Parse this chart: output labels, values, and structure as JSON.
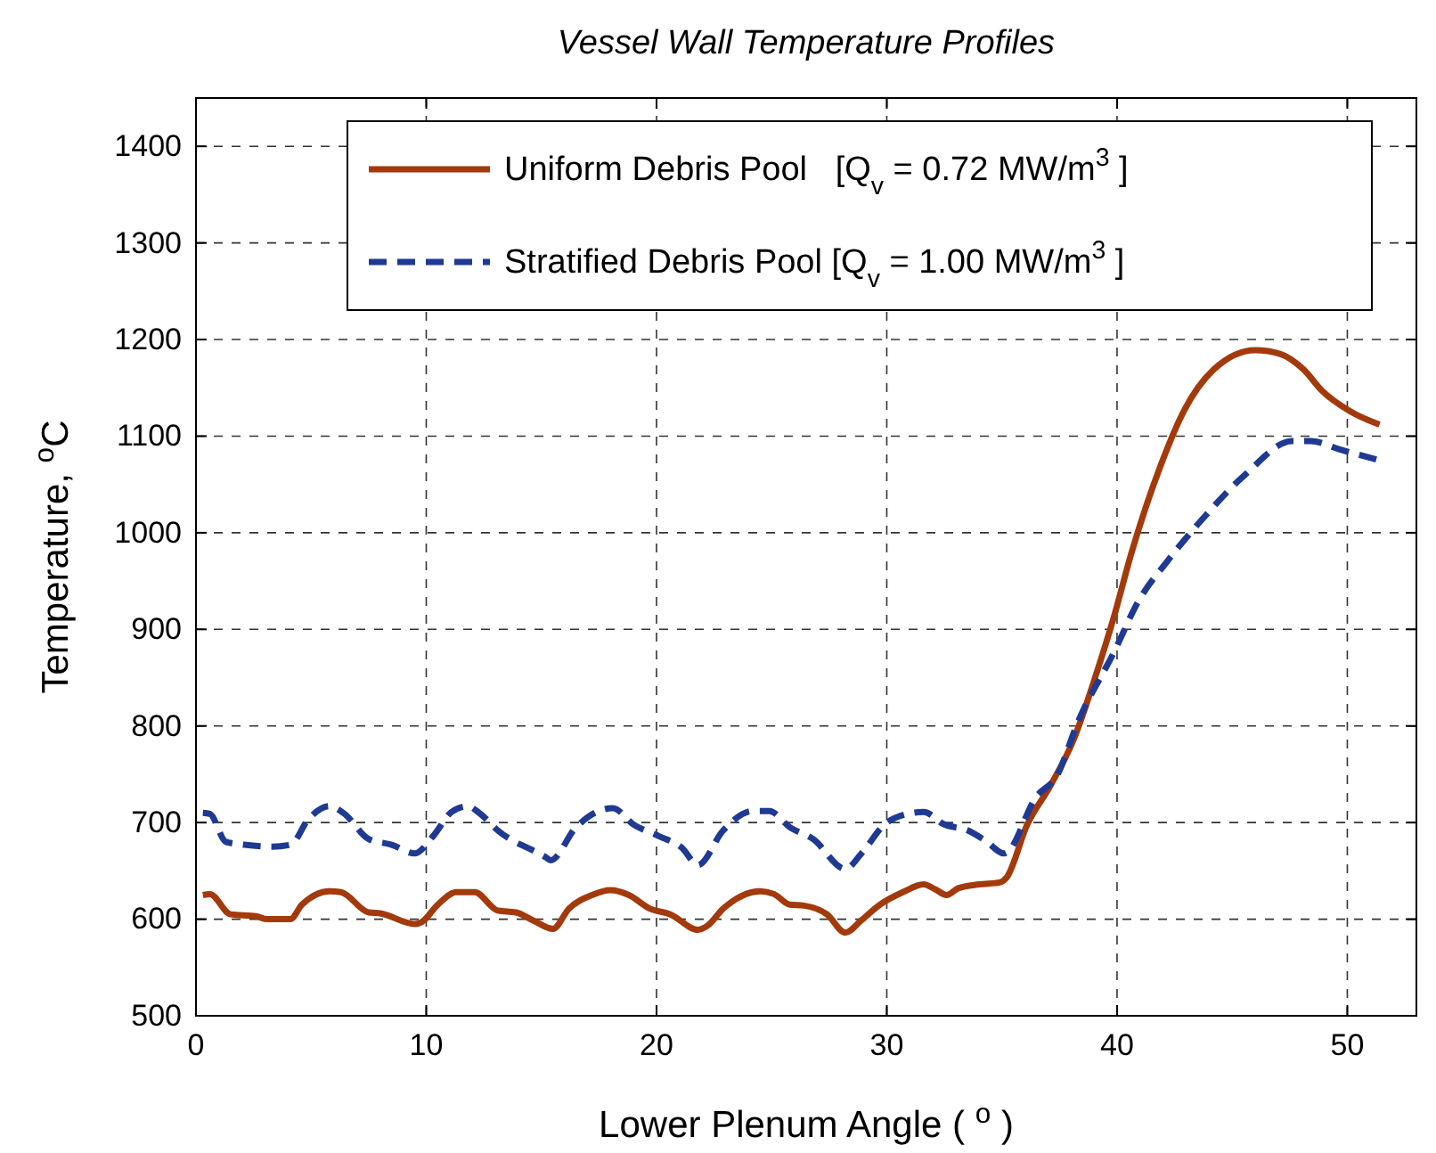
{
  "chart_data": {
    "type": "line",
    "title": "Vessel Wall Temperature Profiles",
    "xlabel": "Lower Plenum Angle ( $^{o}$ )",
    "ylabel": "Temperature, $^{o}$C",
    "xlim": [
      0,
      53
    ],
    "ylim": [
      500,
      1450
    ],
    "xticks": [
      0,
      10,
      20,
      30,
      40,
      50
    ],
    "yticks": [
      500,
      600,
      700,
      800,
      900,
      1000,
      1100,
      1200,
      1300,
      1400
    ],
    "grid": true,
    "legend": "top",
    "series": [
      {
        "name": "Uniform Debris Pool   [Q$_{v}$ = 0.72 MW/m$^{3}$ ]",
        "color": "#a33a0c",
        "line_style": "solid",
        "x": [
          0.3,
          0.6,
          1.5,
          2.6,
          3.1,
          4.1,
          4.6,
          5.8,
          6.3,
          7.5,
          8.0,
          9.5,
          9.8,
          10.5,
          11.3,
          12.1,
          13.1,
          13.9,
          14.7,
          15.5,
          16.2,
          17.2,
          18.0,
          18.8,
          19.7,
          20.6,
          21.8,
          22.2,
          22.9,
          24.5,
          25.1,
          25.8,
          26.4,
          27.4,
          28.2,
          28.9,
          29.7,
          30.7,
          31.6,
          32.1,
          32.6,
          33.1,
          34.0,
          34.9,
          35.2,
          36.1,
          37.1,
          38.1,
          39.1,
          39.9,
          40.6,
          41.9,
          42.9,
          44.2,
          46.0,
          47.1,
          48.1,
          48.9,
          50.1,
          51.4
        ],
        "values": [
          625,
          626,
          605,
          603,
          600,
          600,
          615,
          629,
          628,
          607,
          606,
          595,
          597,
          615,
          628,
          628,
          609,
          607,
          598,
          590,
          611,
          625,
          630,
          625,
          611,
          605,
          589,
          593,
          611,
          629,
          626,
          615,
          614,
          605,
          586,
          599,
          615,
          628,
          636,
          631,
          625,
          632,
          636,
          638,
          643,
          698,
          738,
          785,
          854,
          916,
          977,
          1070,
          1126,
          1169,
          1189,
          1185,
          1169,
          1147,
          1126,
          1112
        ]
      },
      {
        "name": "Stratified Debris Pool [Q$_{v}$ = 1.00 MW/m$^{3}$ ]",
        "color": "#1f3a93",
        "line_style": "dashed",
        "x": [
          0.3,
          0.6,
          1.3,
          2.1,
          3.3,
          4.1,
          4.9,
          5.8,
          6.4,
          7.5,
          8.5,
          9.5,
          10.3,
          11.1,
          11.8,
          12.3,
          13.1,
          15.2,
          15.4,
          16.5,
          17.5,
          18.1,
          19.0,
          20.1,
          21.1,
          21.8,
          22.9,
          24.2,
          24.9,
          25.8,
          26.8,
          28.2,
          28.9,
          29.9,
          30.9,
          31.6,
          32.5,
          33.5,
          34.3,
          35.1,
          36.5,
          37.4,
          38.3,
          39.9,
          40.9,
          42.2,
          43.7,
          45.6,
          47.6,
          48.4,
          49.7,
          51.4
        ],
        "values": [
          710,
          709,
          680,
          677,
          675,
          677,
          704,
          717,
          710,
          683,
          677,
          668,
          686,
          711,
          717,
          710,
          692,
          664,
          661,
          695,
          712,
          715,
          698,
          686,
          674,
          656,
          692,
          712,
          712,
          695,
          683,
          652,
          668,
          698,
          709,
          711,
          698,
          692,
          681,
          668,
          727,
          749,
          804,
          878,
          928,
          971,
          1014,
          1061,
          1095,
          1095,
          1086,
          1075
        ]
      }
    ]
  }
}
